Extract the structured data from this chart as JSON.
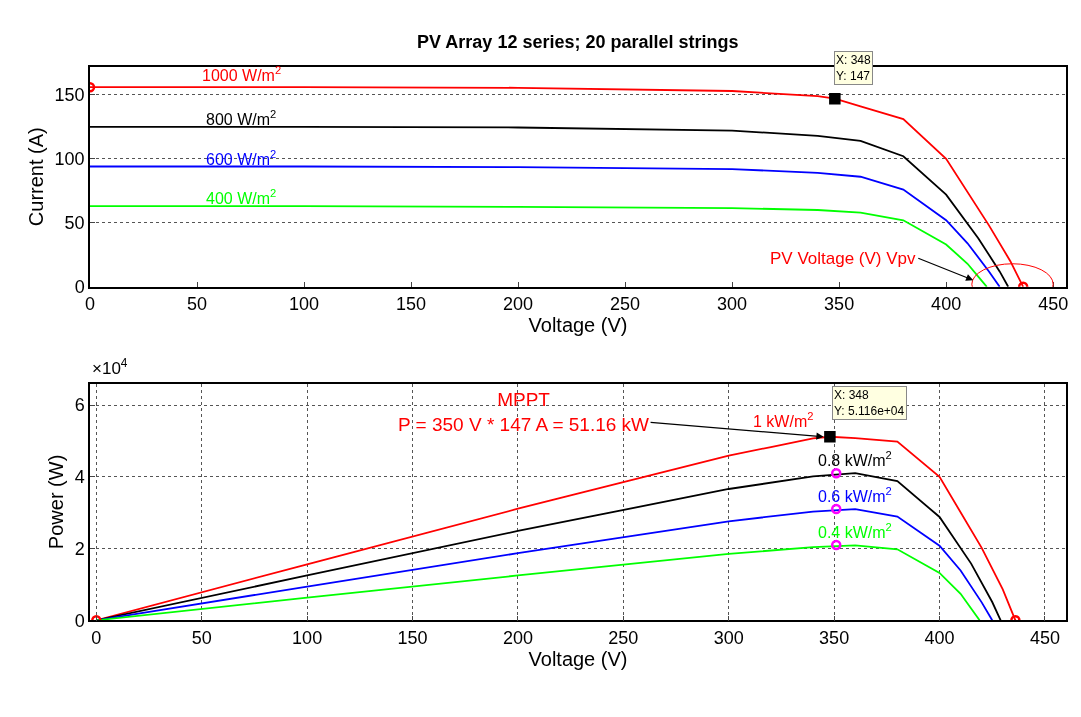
{
  "chart_data": [
    {
      "type": "line",
      "title": "PV Array 12 series; 20 parallel strings",
      "xlabel": "Voltage (V)",
      "ylabel": "Current (A)",
      "xlim": [
        0,
        456
      ],
      "xticks": [
        0,
        50,
        100,
        150,
        200,
        250,
        300,
        350,
        400,
        450
      ],
      "ylim": [
        0,
        172
      ],
      "yticks": [
        0,
        50,
        100,
        150
      ],
      "grid": "y",
      "marker": "none",
      "line_style": "solid",
      "series": [
        {
          "name": "1000 W/m$^{2}$",
          "color": "#ff0000",
          "x": [
            0,
            100,
            200,
            300,
            320,
            340,
            348,
            360,
            380,
            400,
            420,
            430,
            436
          ],
          "values": [
            156,
            156,
            155.5,
            153,
            151,
            149,
            147,
            141,
            131,
            100,
            48,
            20,
            0
          ]
        },
        {
          "name": "800 W/m$^{2}$",
          "color": "#000000",
          "x": [
            0,
            100,
            200,
            300,
            340,
            360,
            380,
            400,
            415,
            425,
            429
          ],
          "values": [
            125,
            125,
            124.5,
            122,
            118,
            114,
            102,
            72,
            38,
            12,
            0
          ]
        },
        {
          "name": "600 W/m$^{2}$",
          "color": "#0000ff",
          "x": [
            0,
            100,
            200,
            300,
            340,
            360,
            380,
            400,
            410,
            420,
            425
          ],
          "values": [
            94,
            94,
            93.5,
            92,
            89,
            86,
            76,
            52,
            34,
            12,
            0
          ]
        },
        {
          "name": "400 W/m$^{2}$",
          "color": "#00ff00",
          "x": [
            0,
            100,
            200,
            300,
            340,
            360,
            380,
            400,
            410,
            415,
            419
          ],
          "values": [
            63,
            63,
            62.5,
            61.5,
            60,
            58,
            52,
            33,
            18,
            8,
            0
          ]
        },
        {
          "type": "scatter",
          "marker": "circle",
          "color": "#ff0000",
          "x": [
            0,
            436
          ],
          "values": [
            156,
            0
          ]
        },
        {
          "type": "scatter",
          "marker": "square",
          "color": "#000000",
          "x": [
            348
          ],
          "values": [
            147
          ]
        }
      ],
      "annotations": [
        "X: 348\nY: 147",
        "PV Voltage (V) Vpv"
      ]
    },
    {
      "type": "line",
      "xlabel": "Voltage (V)",
      "ylabel": "Power (W)",
      "xlim": [
        -3,
        460
      ],
      "xticks": [
        0,
        50,
        100,
        150,
        200,
        250,
        300,
        350,
        400,
        450
      ],
      "ylim": [
        0,
        6.6
      ],
      "yticks": [
        0,
        2,
        4,
        6
      ],
      "grid": true,
      "marker": "none",
      "line_style": "solid",
      "series": [
        {
          "name": "1 kW/m$^{2}$",
          "color": "#ff0000",
          "x": [
            0,
            100,
            200,
            300,
            320,
            340,
            348,
            360,
            380,
            400,
            420,
            430,
            436
          ],
          "values": [
            0,
            1.56,
            3.11,
            4.59,
            4.83,
            5.07,
            5.116,
            5.08,
            4.98,
            4.0,
            2.02,
            0.86,
            0
          ]
        },
        {
          "name": "0.8 kW/m$^{2}$",
          "color": "#000000",
          "x": [
            0,
            100,
            200,
            300,
            340,
            360,
            380,
            400,
            415,
            425,
            429
          ],
          "values": [
            0,
            1.25,
            2.49,
            3.66,
            4.01,
            4.1,
            3.88,
            2.88,
            1.58,
            0.51,
            0
          ]
        },
        {
          "name": "0.6 kW/m$^{2}$",
          "color": "#0000ff",
          "x": [
            0,
            100,
            200,
            300,
            340,
            360,
            380,
            400,
            410,
            420,
            425
          ],
          "values": [
            0,
            0.94,
            1.87,
            2.76,
            3.03,
            3.1,
            2.89,
            2.08,
            1.39,
            0.5,
            0
          ]
        },
        {
          "name": "0.4 kW/m$^{2}$",
          "color": "#00ff00",
          "x": [
            0,
            100,
            200,
            300,
            340,
            360,
            380,
            400,
            410,
            415,
            419
          ],
          "values": [
            0,
            0.63,
            1.25,
            1.85,
            2.04,
            2.09,
            1.98,
            1.32,
            0.74,
            0.33,
            0
          ]
        },
        {
          "type": "scatter",
          "marker": "circle",
          "color": "#ff0000",
          "x": [
            0,
            436
          ],
          "values": [
            0,
            0
          ]
        },
        {
          "type": "scatter",
          "marker": "square",
          "color": "#000000",
          "x": [
            348
          ],
          "values": [
            5.116
          ]
        },
        {
          "type": "scatter",
          "marker": "circle",
          "color": "#ff00ff",
          "x": [
            351,
            351,
            351
          ],
          "values": [
            4.1,
            3.1,
            2.1
          ]
        }
      ],
      "annotations": [
        "×10$^{4}$",
        {
          "text": "MPPT\nP = 350 V * 147 A = 51.16 kW",
          "x": 345,
          "y": 5.116
        },
        "X: 348\nY: 5.116e+04"
      ]
    }
  ]
}
